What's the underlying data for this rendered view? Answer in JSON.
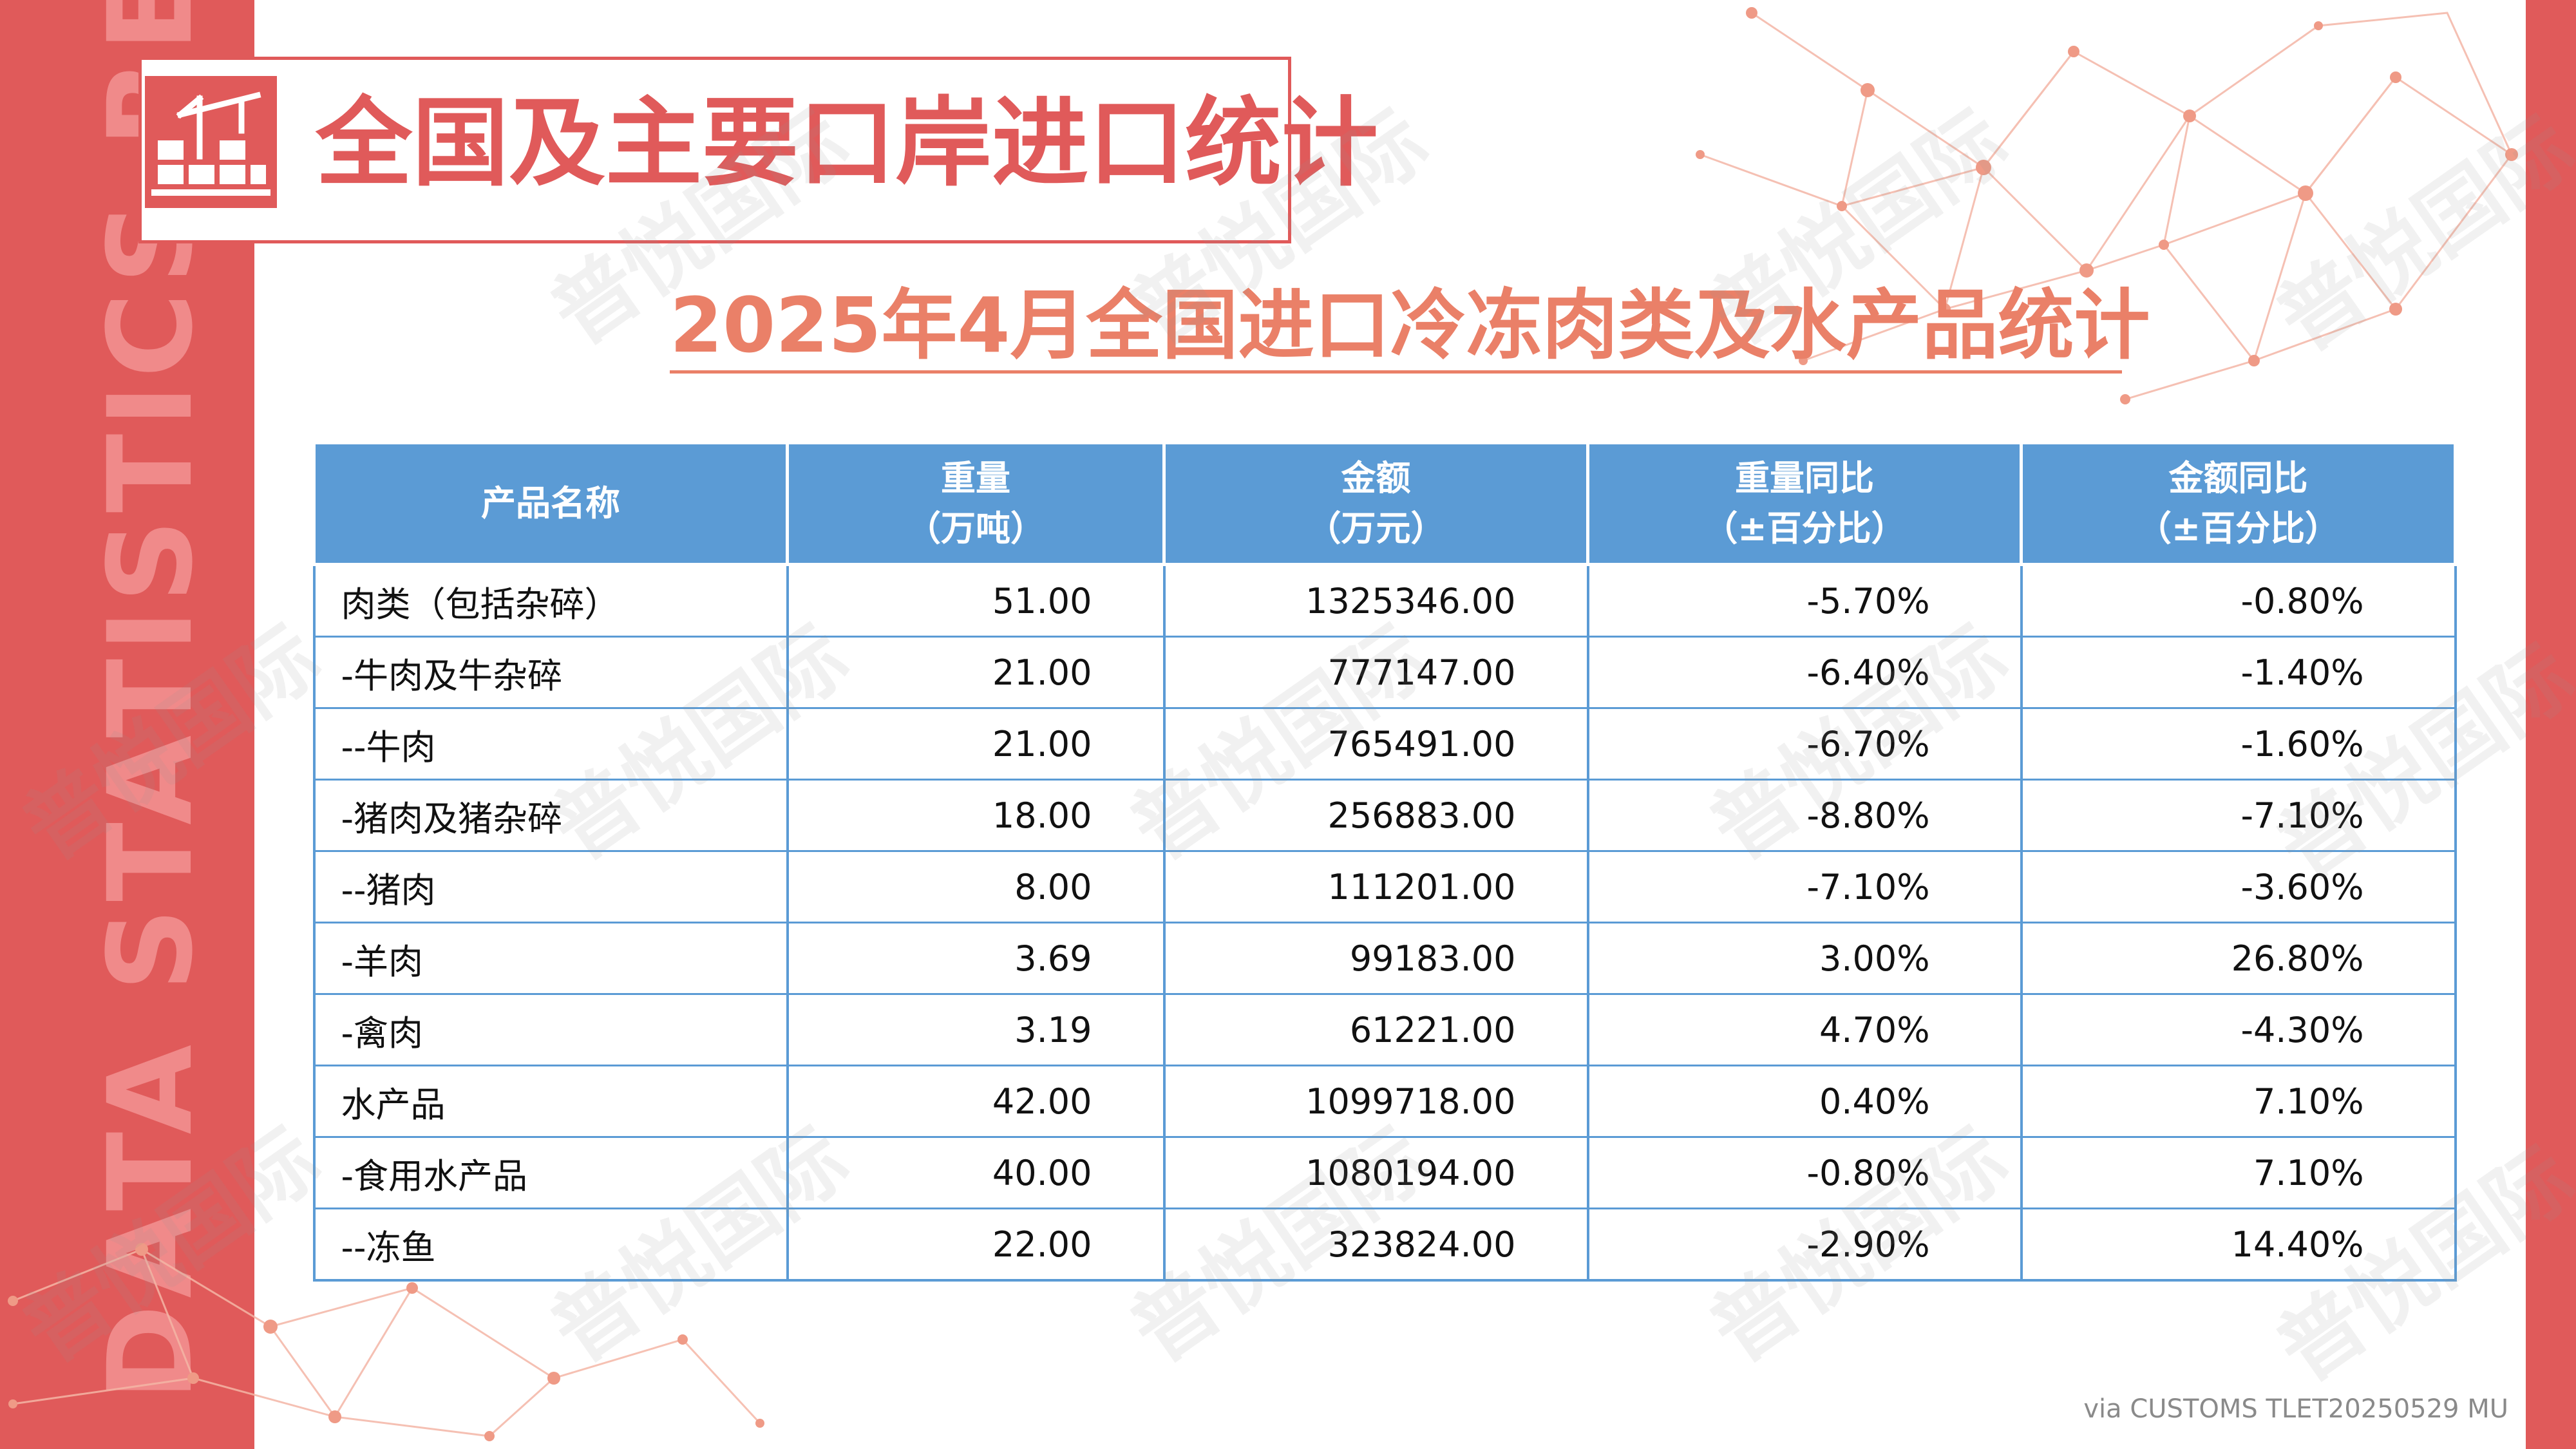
{
  "sidebar_text": "DATA STATISTICS REPORT",
  "header": {
    "title": "全国及主要口岸进口统计",
    "icon": "port-crane-icon"
  },
  "subtitle": "2025年4月全国进口冷冻肉类及水产品统计",
  "table": {
    "columns": [
      {
        "line1": "产品名称",
        "line2": ""
      },
      {
        "line1": "重量",
        "line2": "（万吨）"
      },
      {
        "line1": "金额",
        "line2": "（万元）"
      },
      {
        "line1": "重量同比",
        "line2": "（±百分比）"
      },
      {
        "line1": "金额同比",
        "line2": "（±百分比）"
      }
    ],
    "rows": [
      {
        "name": "肉类（包括杂碎）",
        "weight": "51.00",
        "amount": "1325346.00",
        "weight_yoy": "-5.70%",
        "amount_yoy": "-0.80%"
      },
      {
        "name": "-牛肉及牛杂碎",
        "weight": "21.00",
        "amount": "777147.00",
        "weight_yoy": "-6.40%",
        "amount_yoy": "-1.40%"
      },
      {
        "name": "--牛肉",
        "weight": "21.00",
        "amount": "765491.00",
        "weight_yoy": "-6.70%",
        "amount_yoy": "-1.60%"
      },
      {
        "name": "-猪肉及猪杂碎",
        "weight": "18.00",
        "amount": "256883.00",
        "weight_yoy": "-8.80%",
        "amount_yoy": "-7.10%"
      },
      {
        "name": "--猪肉",
        "weight": "8.00",
        "amount": "111201.00",
        "weight_yoy": "-7.10%",
        "amount_yoy": "-3.60%"
      },
      {
        "name": "-羊肉",
        "weight": "3.69",
        "amount": "99183.00",
        "weight_yoy": "3.00%",
        "amount_yoy": "26.80%"
      },
      {
        "name": "-禽肉",
        "weight": "3.19",
        "amount": "61221.00",
        "weight_yoy": "4.70%",
        "amount_yoy": "-4.30%"
      },
      {
        "name": "水产品",
        "weight": "42.00",
        "amount": "1099718.00",
        "weight_yoy": "0.40%",
        "amount_yoy": "7.10%"
      },
      {
        "name": "-食用水产品",
        "weight": "40.00",
        "amount": "1080194.00",
        "weight_yoy": "-0.80%",
        "amount_yoy": "7.10%"
      },
      {
        "name": "--冻鱼",
        "weight": "22.00",
        "amount": "323824.00",
        "weight_yoy": "-2.90%",
        "amount_yoy": "14.40%"
      }
    ]
  },
  "watermark": "普悦国际",
  "source": "via CUSTOMS TLET20250529 MU",
  "colors": {
    "accent_red": "#e05a5a",
    "subtitle_orange": "#ea8068",
    "header_blue": "#5b9bd5"
  }
}
